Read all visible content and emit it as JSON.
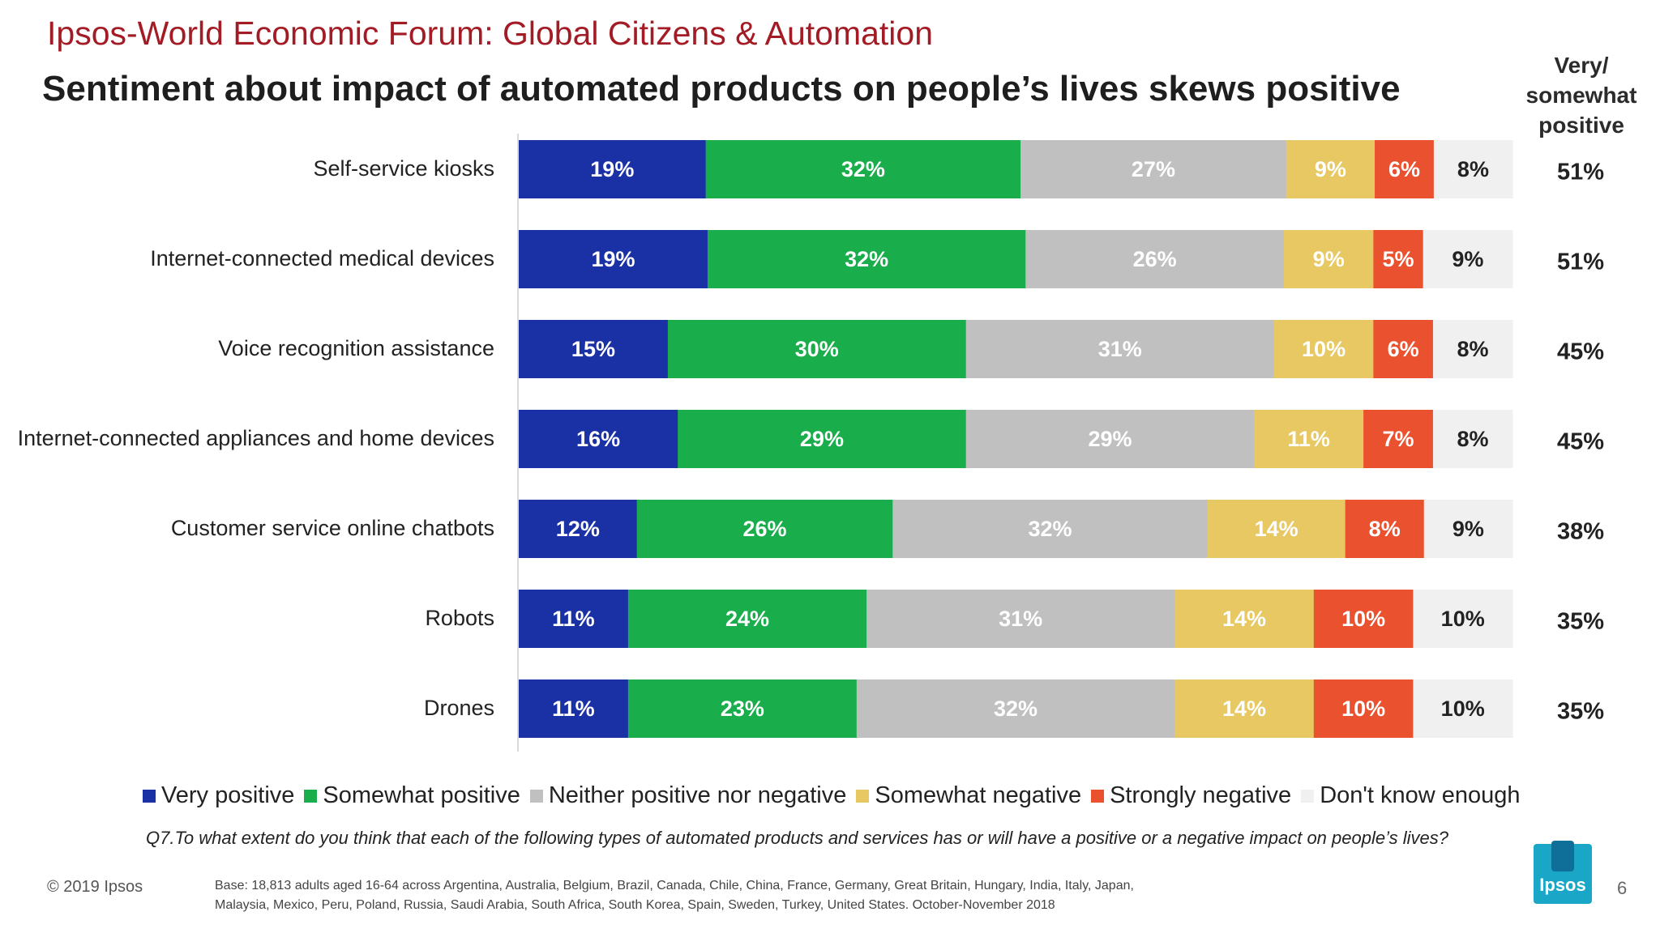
{
  "header": {
    "supertitle": "Ipsos-World Economic Forum: Global Citizens & Automation",
    "title": "Sentiment about impact of automated products on people’s lives skews positive",
    "totals_header_line1": "Very/",
    "totals_header_line2": "somewhat",
    "totals_header_line3": "positive"
  },
  "chart_data": {
    "type": "bar",
    "orientation": "horizontal",
    "stacked": true,
    "units": "percent",
    "title": "Sentiment about impact of automated products on people’s lives skews positive",
    "categories": [
      "Self-service kiosks",
      "Internet-connected medical devices",
      "Voice recognition assistance",
      "Internet-connected appliances and home devices",
      "Customer service online chatbots",
      "Robots",
      "Drones"
    ],
    "series": [
      {
        "name": "Very positive",
        "color": "#1a31a6",
        "label_color": "#ffffff",
        "values": [
          19,
          19,
          15,
          16,
          12,
          11,
          11
        ]
      },
      {
        "name": "Somewhat positive",
        "color": "#1aad4c",
        "label_color": "#ffffff",
        "values": [
          32,
          32,
          30,
          29,
          26,
          24,
          23
        ]
      },
      {
        "name": "Neither positive nor negative",
        "color": "#c1c0c1",
        "label_color": "#ffffff",
        "values": [
          27,
          26,
          31,
          29,
          32,
          31,
          32
        ]
      },
      {
        "name": "Somewhat negative",
        "color": "#e8c862",
        "label_color": "#ffffff",
        "values": [
          9,
          9,
          10,
          11,
          14,
          14,
          14
        ]
      },
      {
        "name": "Strongly negative",
        "color": "#e9512f",
        "label_color": "#ffffff",
        "values": [
          6,
          5,
          6,
          7,
          8,
          10,
          10
        ]
      },
      {
        "name": "Don't know enough",
        "color": "#f0f0f0",
        "label_color": "#222222",
        "values": [
          8,
          9,
          8,
          8,
          9,
          10,
          10
        ]
      }
    ],
    "totals": {
      "name": "Very/ somewhat positive",
      "values": [
        51,
        51,
        45,
        45,
        38,
        35,
        35
      ]
    },
    "legend_position": "bottom"
  },
  "legend": [
    {
      "label": "Very positive",
      "color": "#1a31a6"
    },
    {
      "label": "Somewhat positive",
      "color": "#1aad4c"
    },
    {
      "label": "Neither positive nor negative",
      "color": "#c1c0c1"
    },
    {
      "label": "Somewhat negative",
      "color": "#e8c862"
    },
    {
      "label": "Strongly negative",
      "color": "#e9512f"
    },
    {
      "label": "Don't know enough",
      "color": "#f0f0f0"
    }
  ],
  "footer": {
    "question": "Q7.To what extent do you think that each of the following types of automated products and services has or will have a positive or a negative impact on people’s lives?",
    "copyright": "© 2019 Ipsos",
    "base_line1": "Base: 18,813  adults aged 16-64 across  Argentina, Australia, Belgium, Brazil, Canada, Chile, China, France, Germany, Great Britain, Hungary, India, Italy, Japan,",
    "base_line2": "Malaysia, Mexico, Peru, Poland, Russia, Saudi Arabia, South Africa, South Korea, Spain, Sweden, Turkey, United States. October-November 2018",
    "logo_text": "Ipsos",
    "page_number": "6"
  }
}
